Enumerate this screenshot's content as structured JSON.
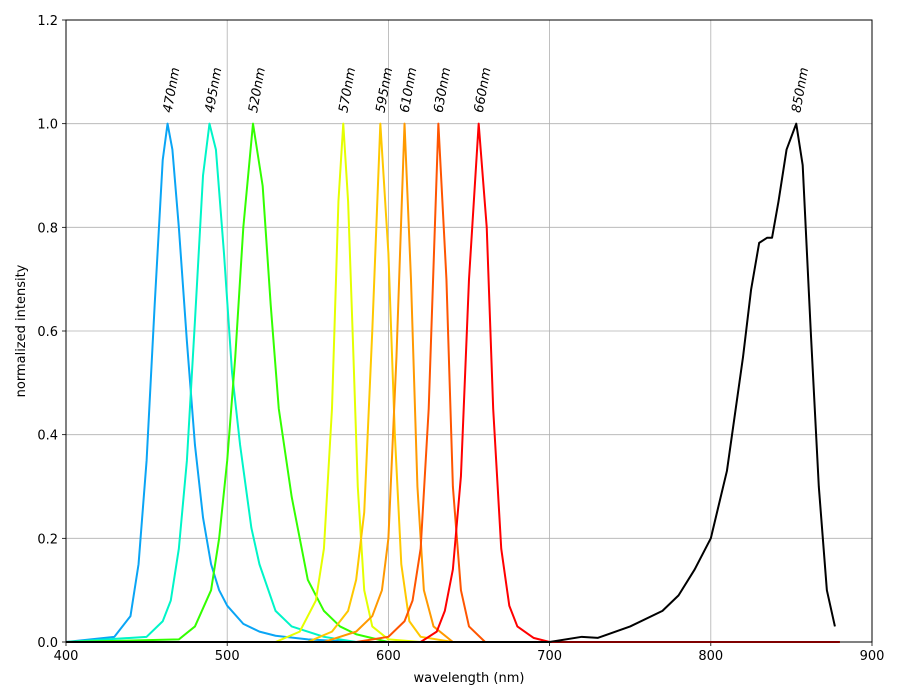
{
  "chart_data": {
    "type": "line",
    "x_label": "wavelength (nm)",
    "y_label": "normalized intensity",
    "xlim": [
      400,
      900
    ],
    "ylim": [
      0,
      1.2
    ],
    "xticks": [
      400,
      500,
      600,
      700,
      800,
      900
    ],
    "yticks": [
      {
        "value": 0,
        "label": "0.0"
      },
      0.2,
      0.4,
      0.6,
      0.8,
      {
        "value": 1,
        "label": "1.0"
      },
      1.2
    ],
    "grid": true,
    "series": [
      {
        "color": "#0aa5f5",
        "x": [
          400,
          430,
          440,
          445,
          450,
          455,
          460,
          463,
          466,
          470,
          475,
          480,
          485,
          490,
          495,
          500,
          510,
          520,
          530,
          550,
          580,
          880
        ],
        "values": [
          0,
          0.01,
          0.05,
          0.15,
          0.35,
          0.65,
          0.93,
          1.0,
          0.95,
          0.8,
          0.58,
          0.38,
          0.24,
          0.15,
          0.1,
          0.07,
          0.035,
          0.02,
          0.012,
          0.005,
          0,
          0
        ]
      },
      {
        "color": "#00f5c8",
        "x": [
          400,
          450,
          460,
          465,
          470,
          475,
          480,
          485,
          489,
          493,
          498,
          503,
          508,
          515,
          520,
          530,
          540,
          560,
          580,
          880
        ],
        "values": [
          0,
          0.01,
          0.04,
          0.08,
          0.18,
          0.35,
          0.62,
          0.9,
          1.0,
          0.95,
          0.75,
          0.52,
          0.38,
          0.22,
          0.15,
          0.06,
          0.03,
          0.01,
          0,
          0
        ]
      },
      {
        "color": "#33ff00",
        "x": [
          400,
          470,
          480,
          490,
          495,
          500,
          505,
          510,
          516,
          522,
          527,
          532,
          540,
          550,
          560,
          570,
          580,
          600,
          880
        ],
        "values": [
          0,
          0.005,
          0.03,
          0.1,
          0.2,
          0.35,
          0.55,
          0.8,
          1.0,
          0.88,
          0.65,
          0.45,
          0.28,
          0.12,
          0.06,
          0.03,
          0.015,
          0,
          0
        ]
      },
      {
        "color": "#e5ff00",
        "x": [
          400,
          530,
          545,
          555,
          560,
          565,
          569,
          572,
          575,
          578,
          581,
          585,
          590,
          600,
          620,
          880
        ],
        "values": [
          0,
          0,
          0.02,
          0.08,
          0.18,
          0.45,
          0.85,
          1.0,
          0.85,
          0.58,
          0.3,
          0.1,
          0.03,
          0.005,
          0,
          0
        ]
      },
      {
        "color": "#ffc800",
        "x": [
          400,
          550,
          565,
          575,
          580,
          585,
          590,
          595,
          600,
          604,
          608,
          613,
          620,
          640,
          880
        ],
        "values": [
          0,
          0,
          0.02,
          0.06,
          0.12,
          0.25,
          0.6,
          1.0,
          0.75,
          0.4,
          0.15,
          0.04,
          0.01,
          0,
          0
        ]
      },
      {
        "color": "#ff9900",
        "x": [
          400,
          560,
          580,
          590,
          596,
          600,
          605,
          610,
          614,
          618,
          622,
          628,
          640,
          880
        ],
        "values": [
          0,
          0,
          0.02,
          0.05,
          0.1,
          0.2,
          0.55,
          1.0,
          0.7,
          0.3,
          0.1,
          0.03,
          0,
          0
        ]
      },
      {
        "color": "#ff5500",
        "x": [
          400,
          580,
          600,
          610,
          615,
          620,
          625,
          631,
          636,
          640,
          645,
          650,
          660,
          880
        ],
        "values": [
          0,
          0,
          0.01,
          0.04,
          0.08,
          0.18,
          0.45,
          1.0,
          0.7,
          0.3,
          0.1,
          0.03,
          0,
          0
        ]
      },
      {
        "color": "#ff0000",
        "x": [
          400,
          620,
          630,
          635,
          640,
          645,
          650,
          656,
          661,
          665,
          670,
          675,
          680,
          690,
          700,
          880
        ],
        "values": [
          0,
          0,
          0.02,
          0.06,
          0.14,
          0.32,
          0.7,
          1.0,
          0.8,
          0.45,
          0.18,
          0.07,
          0.03,
          0.008,
          0,
          0
        ]
      },
      {
        "color": "#000000",
        "x": [
          400,
          700,
          720,
          730,
          750,
          770,
          780,
          790,
          800,
          810,
          820,
          825,
          830,
          835,
          838,
          842,
          847,
          853,
          857,
          862,
          867,
          872,
          877
        ],
        "values": [
          0,
          0,
          0.01,
          0.008,
          0.03,
          0.06,
          0.09,
          0.14,
          0.2,
          0.33,
          0.55,
          0.68,
          0.77,
          0.78,
          0.78,
          0.85,
          0.95,
          1.0,
          0.92,
          0.6,
          0.3,
          0.1,
          0.03
        ]
      }
    ],
    "annotations": [
      {
        "text": "470nm",
        "x": 463,
        "y": 1.02
      },
      {
        "text": "495nm",
        "x": 489,
        "y": 1.02
      },
      {
        "text": "520nm",
        "x": 516,
        "y": 1.02
      },
      {
        "text": "570nm",
        "x": 572,
        "y": 1.02
      },
      {
        "text": "595nm",
        "x": 595,
        "y": 1.02
      },
      {
        "text": "610nm",
        "x": 610,
        "y": 1.02
      },
      {
        "text": "630nm",
        "x": 631,
        "y": 1.02
      },
      {
        "text": "660nm",
        "x": 656,
        "y": 1.02
      },
      {
        "text": "850nm",
        "x": 853,
        "y": 1.02
      }
    ]
  }
}
